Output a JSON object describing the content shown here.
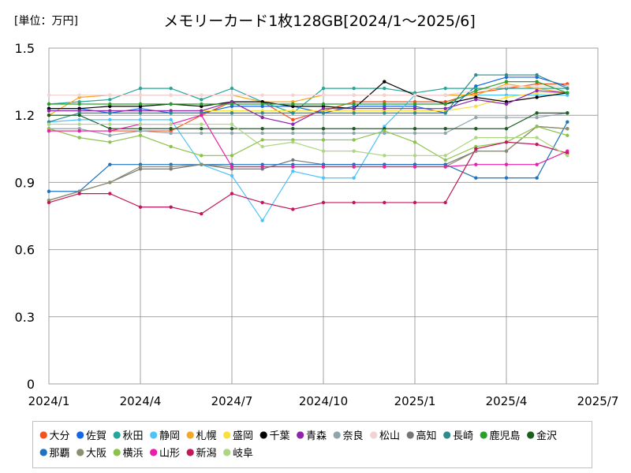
{
  "chart_data": {
    "type": "line",
    "title": "メモリーカード1枚128GB[2024/1～2025/6]",
    "unit_label": "[単位：万円]",
    "x_tick_labels": [
      "2024/1",
      "2024/4",
      "2024/7",
      "2024/10",
      "2025/1",
      "2025/4",
      "2025/7"
    ],
    "x": [
      "2024/1",
      "2024/2",
      "2024/3",
      "2024/4",
      "2024/5",
      "2024/6",
      "2024/7",
      "2024/8",
      "2024/9",
      "2024/10",
      "2024/11",
      "2024/12",
      "2025/1",
      "2025/2",
      "2025/3",
      "2025/4",
      "2025/5",
      "2025/6"
    ],
    "y_ticks": [
      "0",
      "0.3",
      "0.6",
      "0.9",
      "1.2",
      "1.5"
    ],
    "ylim": [
      0,
      1.5
    ],
    "grid": true,
    "legend_placement": "bottom",
    "series": [
      {
        "name": "大分",
        "color": "#f4511e",
        "values": [
          1.13,
          1.13,
          1.13,
          1.13,
          1.13,
          1.2,
          1.26,
          1.26,
          1.18,
          1.22,
          1.26,
          1.26,
          1.26,
          1.26,
          1.3,
          1.32,
          1.34,
          1.34
        ]
      },
      {
        "name": "佐賀",
        "color": "#1565e8",
        "values": [
          1.23,
          1.23,
          1.21,
          1.23,
          1.21,
          1.21,
          1.24,
          1.24,
          1.24,
          1.21,
          1.24,
          1.24,
          1.24,
          1.21,
          1.33,
          1.37,
          1.37,
          1.33
        ]
      },
      {
        "name": "秋田",
        "color": "#26a69a",
        "values": [
          1.25,
          1.26,
          1.27,
          1.32,
          1.32,
          1.27,
          1.32,
          1.26,
          1.21,
          1.32,
          1.32,
          1.32,
          1.3,
          1.32,
          1.32,
          1.32,
          1.32,
          1.32
        ]
      },
      {
        "name": "静岡",
        "color": "#4fc3f7",
        "values": [
          1.17,
          1.18,
          1.18,
          1.18,
          1.18,
          0.98,
          0.93,
          0.73,
          0.95,
          0.92,
          0.92,
          1.15,
          1.29,
          1.29,
          1.29,
          1.29,
          1.29,
          1.29
        ]
      },
      {
        "name": "札幌",
        "color": "#f5a623",
        "values": [
          1.2,
          1.28,
          1.29,
          1.29,
          1.29,
          1.29,
          1.29,
          1.26,
          1.26,
          1.29,
          1.29,
          1.29,
          1.29,
          1.29,
          1.29,
          1.34,
          1.32,
          1.3
        ]
      },
      {
        "name": "盛岡",
        "color": "#f9e03b",
        "values": [
          1.22,
          1.22,
          1.22,
          1.22,
          1.22,
          1.22,
          1.22,
          1.22,
          1.22,
          1.22,
          1.22,
          1.22,
          1.22,
          1.22,
          1.24,
          1.28,
          1.3,
          1.3
        ]
      },
      {
        "name": "千葉",
        "color": "#000000",
        "values": [
          1.23,
          1.23,
          1.24,
          1.24,
          1.25,
          1.24,
          1.26,
          1.26,
          1.24,
          1.24,
          1.23,
          1.35,
          1.29,
          1.25,
          1.28,
          1.26,
          1.28,
          1.3
        ]
      },
      {
        "name": "青森",
        "color": "#8e24aa",
        "values": [
          1.22,
          1.22,
          1.22,
          1.22,
          1.22,
          1.22,
          1.26,
          1.19,
          1.16,
          1.23,
          1.23,
          1.23,
          1.23,
          1.23,
          1.27,
          1.25,
          1.31,
          1.3
        ]
      },
      {
        "name": "奈良",
        "color": "#90a4ae",
        "values": [
          1.14,
          1.14,
          1.11,
          1.13,
          1.12,
          1.12,
          1.12,
          1.12,
          1.12,
          1.12,
          1.12,
          1.12,
          1.12,
          1.12,
          1.19,
          1.19,
          1.19,
          1.21
        ]
      },
      {
        "name": "松山",
        "color": "#f2d3d3",
        "values": [
          1.29,
          1.29,
          1.29,
          1.29,
          1.29,
          1.29,
          1.29,
          1.29,
          1.29,
          1.29,
          1.29,
          1.29,
          1.29,
          1.29,
          1.31,
          1.33,
          1.33,
          1.33
        ]
      },
      {
        "name": "高知",
        "color": "#757575",
        "values": [
          0.82,
          0.86,
          0.9,
          0.96,
          0.96,
          0.98,
          0.96,
          0.96,
          1.0,
          0.98,
          0.98,
          0.98,
          0.98,
          0.98,
          1.04,
          1.04,
          1.15,
          1.14
        ]
      },
      {
        "name": "長崎",
        "color": "#2e8b8b",
        "values": [
          1.17,
          1.21,
          1.21,
          1.21,
          1.21,
          1.21,
          1.21,
          1.21,
          1.21,
          1.21,
          1.21,
          1.21,
          1.21,
          1.21,
          1.38,
          1.38,
          1.38,
          1.32
        ]
      },
      {
        "name": "鹿児島",
        "color": "#2aa02a",
        "values": [
          1.25,
          1.25,
          1.25,
          1.25,
          1.25,
          1.25,
          1.25,
          1.25,
          1.25,
          1.25,
          1.25,
          1.25,
          1.25,
          1.25,
          1.31,
          1.35,
          1.35,
          1.3
        ]
      },
      {
        "name": "金沢",
        "color": "#1b5e20",
        "values": [
          1.2,
          1.2,
          1.14,
          1.14,
          1.14,
          1.14,
          1.14,
          1.14,
          1.14,
          1.14,
          1.14,
          1.14,
          1.14,
          1.14,
          1.14,
          1.14,
          1.21,
          1.21
        ]
      },
      {
        "name": "那覇",
        "color": "#1e73be",
        "values": [
          0.86,
          0.86,
          0.98,
          0.98,
          0.98,
          0.98,
          0.98,
          0.98,
          0.98,
          0.98,
          0.98,
          0.98,
          0.98,
          0.98,
          0.92,
          0.92,
          0.92,
          1.17
        ]
      },
      {
        "name": "大阪",
        "color": "#8d8d6f",
        "values": [
          0.82,
          0.86,
          0.9,
          0.97,
          0.97,
          0.98,
          0.97,
          0.97,
          0.97,
          0.97,
          0.97,
          0.97,
          0.97,
          0.97,
          1.04,
          1.04,
          1.15,
          1.14
        ]
      },
      {
        "name": "横浜",
        "color": "#8bc34a",
        "values": [
          1.14,
          1.1,
          1.08,
          1.11,
          1.06,
          1.02,
          1.02,
          1.09,
          1.09,
          1.09,
          1.09,
          1.13,
          1.08,
          1.0,
          1.06,
          1.08,
          1.15,
          1.11
        ]
      },
      {
        "name": "山形",
        "color": "#e91eab",
        "values": [
          1.13,
          1.13,
          1.13,
          1.16,
          1.16,
          1.2,
          0.97,
          0.97,
          0.97,
          0.97,
          0.97,
          0.97,
          0.97,
          0.97,
          0.98,
          0.98,
          0.98,
          1.04
        ]
      },
      {
        "name": "新潟",
        "color": "#c2185b",
        "values": [
          0.81,
          0.85,
          0.85,
          0.79,
          0.79,
          0.76,
          0.85,
          0.81,
          0.78,
          0.81,
          0.81,
          0.81,
          0.81,
          0.81,
          1.05,
          1.08,
          1.07,
          1.03
        ]
      },
      {
        "name": "岐阜",
        "color": "#aed581",
        "values": [
          1.16,
          1.16,
          1.16,
          1.16,
          1.16,
          1.16,
          1.16,
          1.06,
          1.08,
          1.04,
          1.04,
          1.02,
          1.02,
          1.02,
          1.1,
          1.1,
          1.1,
          1.02
        ]
      }
    ]
  }
}
